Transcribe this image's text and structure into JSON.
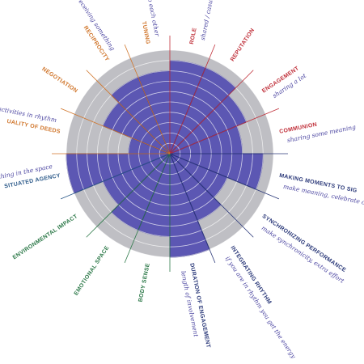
{
  "chart_data": {
    "type": "polar",
    "categories": [
      "ROLE",
      "REPUTATION",
      "ENGAGEMENT",
      "COMMUNION",
      "MAKING MOMENTS TO SIG",
      "SYNCHRONIZING PERFORMANCE",
      "INTEGRATING RHYTHM",
      "DURATION OF ENGAGEMENT",
      "BODY SENSE",
      "EMOTIONAL SPACE",
      "ENVIRONMENTAL IMPACT",
      "SITUATED AGENCY",
      "UALITY OF DEEDS",
      "NEGOTIATION",
      "RECIPROCITY",
      "TUNING"
    ],
    "label_colors": [
      "#c0303a",
      "#c0303a",
      "#c0303a",
      "#c0303a",
      "#2c3a7a",
      "#2c3a7a",
      "#2c3a7a",
      "#2c3a7a",
      "#2e7a4a",
      "#2e7a4a",
      "#2e7a4a",
      "#2c5a8a",
      "#d0752a",
      "#d0752a",
      "#d0752a",
      "#d0752a"
    ],
    "values": [
      9,
      9,
      8,
      7,
      9,
      6,
      7,
      10,
      8,
      8,
      7,
      10,
      4,
      7,
      8,
      8
    ],
    "color": "#4a44b0",
    "notes": [
      "shared / casual",
      null,
      "sharing a lot",
      "sharing some meaning",
      "make meaning, celebrate certain happenings",
      "make synchronicity, extra effort",
      "if you are in rhythm you get the energy",
      "length of involvement",
      null,
      null,
      null,
      "whether they can do something in the space",
      "activities in rhythm",
      null,
      "giving and receiving something",
      "tune into each other"
    ],
    "rlim": [
      0,
      10
    ],
    "rticks": [
      1,
      2,
      3,
      4,
      5,
      6,
      7,
      8,
      9,
      10
    ],
    "grid": true
  }
}
